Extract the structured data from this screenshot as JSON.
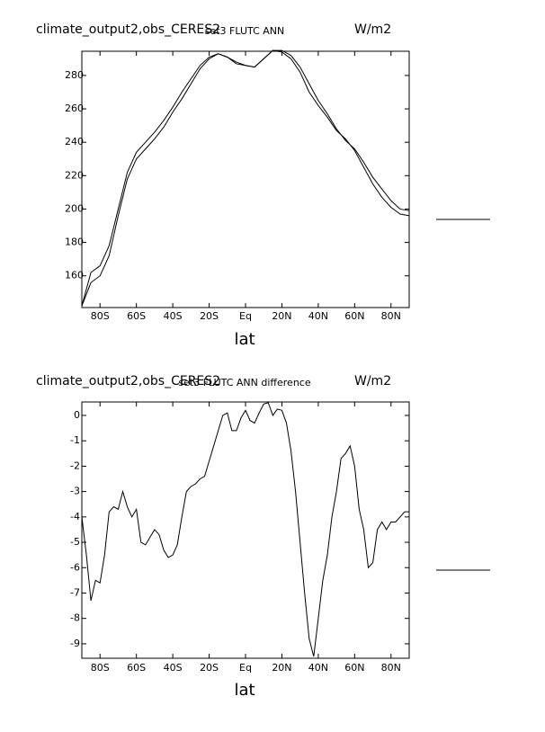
{
  "chart_data": [
    {
      "type": "line",
      "title": "climate_output2,obs_CERES2",
      "subtitle": "set3 FLUTC ANN",
      "units": "W/m2",
      "xlabel": "lat",
      "xlim": [
        -90,
        90
      ],
      "ylim": [
        141,
        294.5
      ],
      "xticks": [
        {
          "value": -80,
          "label": "80S"
        },
        {
          "value": -60,
          "label": "60S"
        },
        {
          "value": -40,
          "label": "40S"
        },
        {
          "value": -20,
          "label": "20S"
        },
        {
          "value": 0,
          "label": "Eq"
        },
        {
          "value": 20,
          "label": "20N"
        },
        {
          "value": 40,
          "label": "40N"
        },
        {
          "value": 60,
          "label": "60N"
        },
        {
          "value": 80,
          "label": "80N"
        }
      ],
      "yticks": [
        160,
        180,
        200,
        220,
        240,
        260,
        280
      ],
      "x": [
        -90,
        -85,
        -80,
        -75,
        -70,
        -65,
        -60,
        -55,
        -50,
        -45,
        -40,
        -35,
        -30,
        -25,
        -20,
        -15,
        -10,
        -5,
        0,
        5,
        10,
        15,
        20,
        25,
        30,
        35,
        40,
        45,
        50,
        55,
        60,
        65,
        70,
        75,
        80,
        85,
        90
      ],
      "series": [
        {
          "color": "#000000",
          "values": [
            142,
            162,
            166,
            178,
            200,
            222,
            234,
            240,
            246,
            253,
            261,
            270,
            278,
            286,
            291,
            293,
            291,
            288,
            286,
            285,
            290,
            295,
            295,
            292,
            285,
            275,
            265,
            257,
            248,
            241,
            236,
            228,
            219,
            212,
            205,
            200,
            199
          ]
        },
        {
          "color": "#000000",
          "values": [
            142,
            156,
            160,
            172,
            196,
            218,
            230,
            236,
            242,
            249,
            258,
            266,
            275,
            284,
            290,
            293,
            291,
            287,
            286,
            285,
            290,
            295,
            294,
            290,
            282,
            270,
            262,
            255,
            247,
            242,
            235,
            225,
            215,
            207,
            201,
            197,
            196
          ]
        }
      ]
    },
    {
      "type": "line",
      "title": "climate_output2,obs_CERES2",
      "subtitle": "set3 FLUTC ANN difference",
      "units": "W/m2",
      "xlabel": "lat",
      "xlim": [
        -90,
        90
      ],
      "ylim": [
        -9.57,
        0.53
      ],
      "xticks": [
        {
          "value": -80,
          "label": "80S"
        },
        {
          "value": -60,
          "label": "60S"
        },
        {
          "value": -40,
          "label": "40S"
        },
        {
          "value": -20,
          "label": "20S"
        },
        {
          "value": 0,
          "label": "Eq"
        },
        {
          "value": 20,
          "label": "20N"
        },
        {
          "value": 40,
          "label": "40N"
        },
        {
          "value": 60,
          "label": "60N"
        },
        {
          "value": 80,
          "label": "80N"
        }
      ],
      "yticks": [
        0,
        -1,
        -2,
        -3,
        -4,
        -5,
        -6,
        -7,
        -8,
        -9
      ],
      "x": [
        -90,
        -87.5,
        -85,
        -82.5,
        -80,
        -77.5,
        -75,
        -72.5,
        -70,
        -67.5,
        -65,
        -62.5,
        -60,
        -57.5,
        -55,
        -52.5,
        -50,
        -47.5,
        -45,
        -42.5,
        -40,
        -37.5,
        -35,
        -32.5,
        -30,
        -27.5,
        -25,
        -22.5,
        -20,
        -17.5,
        -15,
        -12.5,
        -10,
        -7.5,
        -5,
        -2.5,
        0,
        2.5,
        5,
        7.5,
        10,
        12.5,
        15,
        17.5,
        20,
        22.5,
        25,
        27.5,
        30,
        32.5,
        35,
        37.5,
        40,
        42.5,
        45,
        47.5,
        50,
        52.5,
        55,
        57.5,
        60,
        62.5,
        65,
        67.5,
        70,
        72.5,
        75,
        77.5,
        80,
        82.5,
        85,
        87.5,
        90
      ],
      "series": [
        {
          "color": "#000000",
          "values": [
            -4.0,
            -5.5,
            -7.3,
            -6.5,
            -6.6,
            -5.5,
            -3.8,
            -3.6,
            -3.7,
            -3.0,
            -3.6,
            -4.0,
            -3.7,
            -5.0,
            -5.1,
            -4.8,
            -4.5,
            -4.7,
            -5.3,
            -5.6,
            -5.5,
            -5.1,
            -4.0,
            -3.0,
            -2.8,
            -2.7,
            -2.5,
            -2.4,
            -1.8,
            -1.2,
            -0.6,
            0.0,
            0.1,
            -0.6,
            -0.6,
            -0.1,
            0.2,
            -0.2,
            -0.3,
            0.1,
            0.45,
            0.5,
            0.0,
            0.25,
            0.2,
            -0.3,
            -1.4,
            -3.0,
            -5.0,
            -7.0,
            -8.8,
            -9.5,
            -8.0,
            -6.5,
            -5.5,
            -4.0,
            -3.0,
            -1.7,
            -1.5,
            -1.2,
            -2.0,
            -3.7,
            -4.5,
            -6.0,
            -5.8,
            -4.5,
            -4.2,
            -4.5,
            -4.2,
            -4.2,
            -4.0,
            -3.8,
            -3.8
          ]
        }
      ]
    }
  ]
}
